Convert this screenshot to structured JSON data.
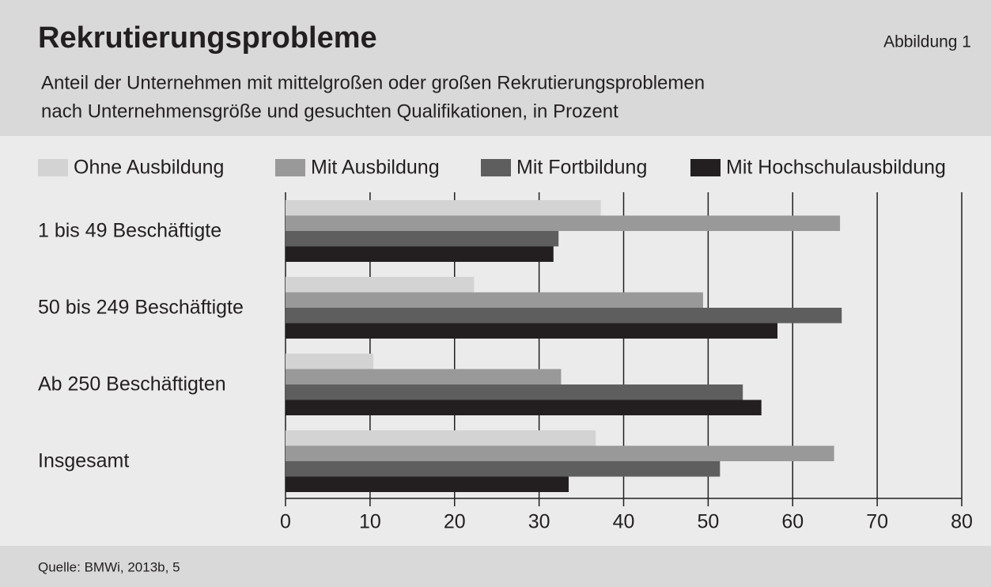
{
  "chart_data": {
    "type": "barh",
    "title": "Rekrutierungsprobleme",
    "figure_label": "Abbildung 1",
    "subtitle": [
      "Anteil der Unternehmen mit mittelgroßen oder großen Rekrutierungsproblemen",
      "nach Unternehmensgröße und gesuchten Qualifikationen, in Prozent"
    ],
    "source": "Quelle: BMWi, 2013b, 5",
    "categories": [
      "1 bis 49 Beschäftigte",
      "50 bis 249 Beschäftigte",
      "Ab 250 Beschäftigten",
      "Insgesamt"
    ],
    "series": [
      {
        "name": "Ohne Ausbildung",
        "color": "#d3d3d3",
        "values": [
          37.3,
          22.3,
          10.4,
          36.7
        ]
      },
      {
        "name": "Mit Ausbildung",
        "color": "#999999",
        "values": [
          65.6,
          49.4,
          32.6,
          64.9
        ]
      },
      {
        "name": "Mit Fortbildung",
        "color": "#5e5e5e",
        "values": [
          32.3,
          65.8,
          54.1,
          51.4
        ]
      },
      {
        "name": "Mit Hochschulausbildung",
        "color": "#231f20",
        "values": [
          31.7,
          58.2,
          56.3,
          33.5
        ]
      }
    ],
    "xlim": [
      0,
      80
    ],
    "xticks": [
      0,
      10,
      20,
      30,
      40,
      50,
      60,
      70,
      80
    ],
    "grid": true
  }
}
